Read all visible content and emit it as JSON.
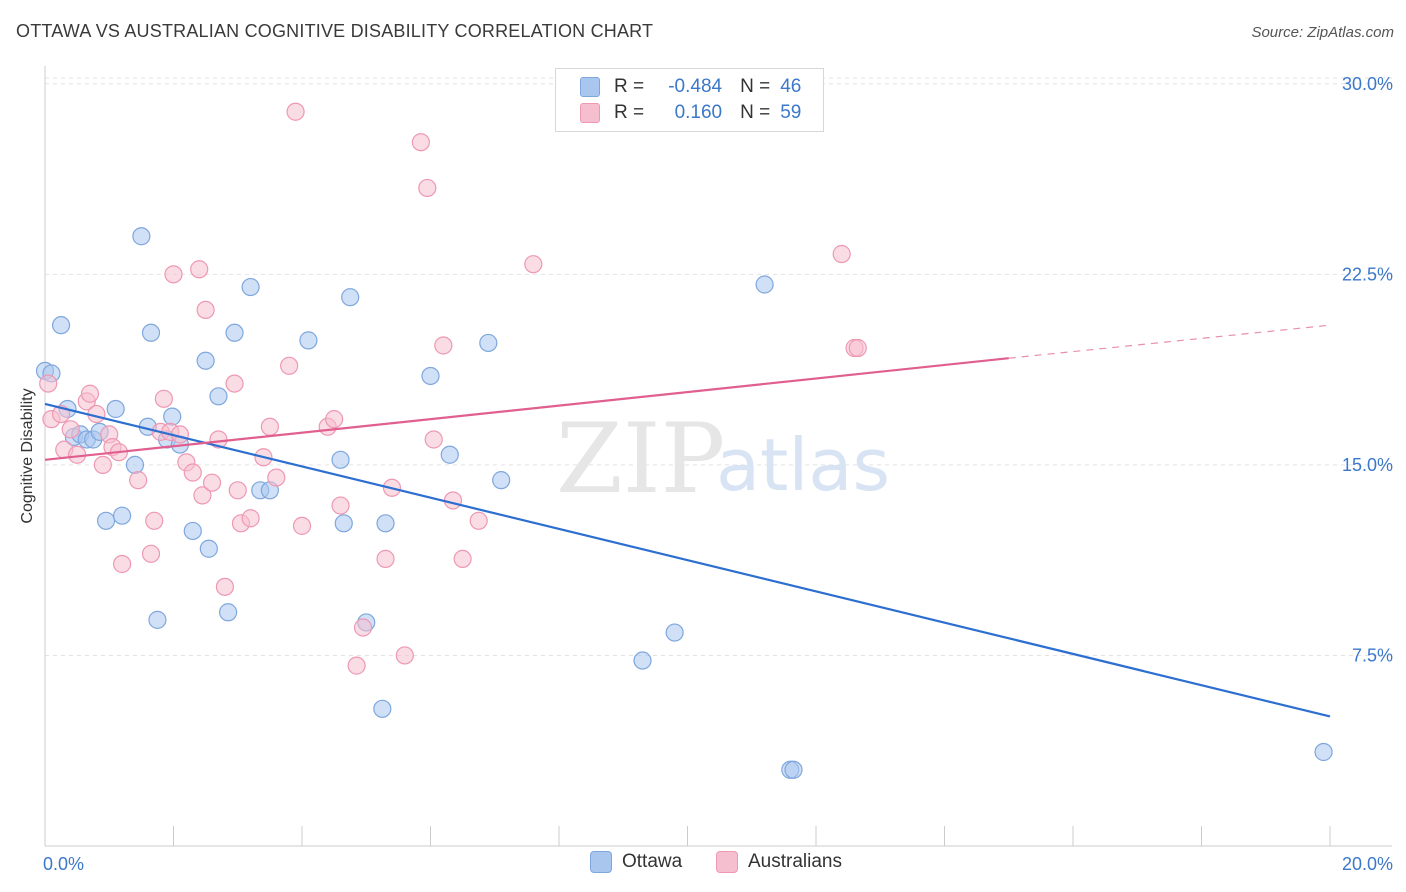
{
  "header": {
    "title": "OTTAWA VS AUSTRALIAN COGNITIVE DISABILITY CORRELATION CHART",
    "source": "Source: ZipAtlas.com"
  },
  "watermark": {
    "zip": "ZIP",
    "atlas": "atlas"
  },
  "colors": {
    "ottawa_fill": "#a9c6ef",
    "ottawa_stroke": "#7fa7dd",
    "ottawa_line": "#2c6fd0",
    "australians_fill": "#f6bfd0",
    "australians_stroke": "#ee98b4",
    "australians_line": "#e05f8e",
    "tick_label": "#3b78c9",
    "grid": "#e3e3e3"
  },
  "legend_top": {
    "rows": [
      {
        "r_label": "R =",
        "r_value": "-0.484",
        "n_label": "N =",
        "n_value": "46"
      },
      {
        "r_label": "R =",
        "r_value": "0.160",
        "n_label": "N =",
        "n_value": "59"
      }
    ]
  },
  "legend_bottom": {
    "items": [
      "Ottawa",
      "Australians"
    ]
  },
  "chart_data": {
    "type": "scatter",
    "title": "OTTAWA VS AUSTRALIAN COGNITIVE DISABILITY CORRELATION CHART",
    "xlabel": "",
    "ylabel": "Cognitive Disability",
    "xlim": [
      0,
      20
    ],
    "ylim": [
      0,
      30.7
    ],
    "x_tick_labels": [
      "0.0%",
      "20.0%"
    ],
    "y_ticks": [
      7.5,
      15.0,
      22.5,
      30.0
    ],
    "y_tick_labels": [
      "7.5%",
      "15.0%",
      "22.5%",
      "30.0%"
    ],
    "grid": true,
    "legend_position": "top-center",
    "series": [
      {
        "name": "Ottawa",
        "r": -0.484,
        "n": 46,
        "trend": {
          "x": [
            0.0,
            20.0
          ],
          "y": [
            17.4,
            5.1
          ]
        },
        "points": [
          [
            0.0,
            18.7
          ],
          [
            0.1,
            18.6
          ],
          [
            0.25,
            20.5
          ],
          [
            0.35,
            17.2
          ],
          [
            0.45,
            16.1
          ],
          [
            0.55,
            16.2
          ],
          [
            0.65,
            16.0
          ],
          [
            0.75,
            16.0
          ],
          [
            0.85,
            16.3
          ],
          [
            0.95,
            12.8
          ],
          [
            1.1,
            17.2
          ],
          [
            1.2,
            13.0
          ],
          [
            1.4,
            15.0
          ],
          [
            1.5,
            24.0
          ],
          [
            1.6,
            16.5
          ],
          [
            1.65,
            20.2
          ],
          [
            1.75,
            8.9
          ],
          [
            1.9,
            16.0
          ],
          [
            1.98,
            16.9
          ],
          [
            2.1,
            15.8
          ],
          [
            2.3,
            12.4
          ],
          [
            2.5,
            19.1
          ],
          [
            2.55,
            11.7
          ],
          [
            2.7,
            17.7
          ],
          [
            2.85,
            9.2
          ],
          [
            2.95,
            20.2
          ],
          [
            3.2,
            22.0
          ],
          [
            3.35,
            14.0
          ],
          [
            3.5,
            14.0
          ],
          [
            4.1,
            19.9
          ],
          [
            4.6,
            15.2
          ],
          [
            4.65,
            12.7
          ],
          [
            4.75,
            21.6
          ],
          [
            5.0,
            8.8
          ],
          [
            5.25,
            5.4
          ],
          [
            5.3,
            12.7
          ],
          [
            6.0,
            18.5
          ],
          [
            6.3,
            15.4
          ],
          [
            6.9,
            19.8
          ],
          [
            7.1,
            14.4
          ],
          [
            9.3,
            7.3
          ],
          [
            9.8,
            8.4
          ],
          [
            11.2,
            22.1
          ],
          [
            11.6,
            3.0
          ],
          [
            11.65,
            3.0
          ],
          [
            19.9,
            3.7
          ]
        ]
      },
      {
        "name": "Australians",
        "r": 0.16,
        "n": 59,
        "trend": {
          "x": [
            0.0,
            15.0
          ],
          "y": [
            15.2,
            19.2
          ]
        },
        "trend_dashed": {
          "x": [
            15.0,
            20.0
          ],
          "y": [
            19.2,
            20.5
          ]
        },
        "points": [
          [
            0.05,
            18.2
          ],
          [
            0.1,
            16.8
          ],
          [
            0.25,
            17.0
          ],
          [
            0.3,
            15.6
          ],
          [
            0.4,
            16.4
          ],
          [
            0.5,
            15.4
          ],
          [
            0.65,
            17.5
          ],
          [
            0.7,
            17.8
          ],
          [
            0.8,
            17.0
          ],
          [
            0.9,
            15.0
          ],
          [
            1.0,
            16.2
          ],
          [
            1.05,
            15.7
          ],
          [
            1.15,
            15.5
          ],
          [
            1.2,
            11.1
          ],
          [
            1.45,
            14.4
          ],
          [
            1.65,
            11.5
          ],
          [
            1.7,
            12.8
          ],
          [
            1.8,
            16.3
          ],
          [
            1.85,
            17.6
          ],
          [
            1.95,
            16.3
          ],
          [
            2.0,
            22.5
          ],
          [
            2.1,
            16.2
          ],
          [
            2.2,
            15.1
          ],
          [
            2.3,
            14.7
          ],
          [
            2.4,
            22.7
          ],
          [
            2.45,
            13.8
          ],
          [
            2.5,
            21.1
          ],
          [
            2.6,
            14.3
          ],
          [
            2.7,
            16.0
          ],
          [
            2.8,
            10.2
          ],
          [
            2.95,
            18.2
          ],
          [
            3.0,
            14.0
          ],
          [
            3.05,
            12.7
          ],
          [
            3.2,
            12.9
          ],
          [
            3.4,
            15.3
          ],
          [
            3.5,
            16.5
          ],
          [
            3.6,
            14.5
          ],
          [
            3.8,
            18.9
          ],
          [
            3.9,
            28.9
          ],
          [
            4.0,
            12.6
          ],
          [
            4.4,
            16.5
          ],
          [
            4.5,
            16.8
          ],
          [
            4.6,
            13.4
          ],
          [
            4.85,
            7.1
          ],
          [
            4.95,
            8.6
          ],
          [
            5.3,
            11.3
          ],
          [
            5.4,
            14.1
          ],
          [
            5.6,
            7.5
          ],
          [
            5.85,
            27.7
          ],
          [
            5.95,
            25.9
          ],
          [
            6.05,
            16.0
          ],
          [
            6.2,
            19.7
          ],
          [
            6.35,
            13.6
          ],
          [
            6.5,
            11.3
          ],
          [
            6.75,
            12.8
          ],
          [
            7.6,
            22.9
          ],
          [
            12.4,
            23.3
          ],
          [
            12.6,
            19.6
          ],
          [
            12.65,
            19.6
          ]
        ]
      }
    ]
  }
}
